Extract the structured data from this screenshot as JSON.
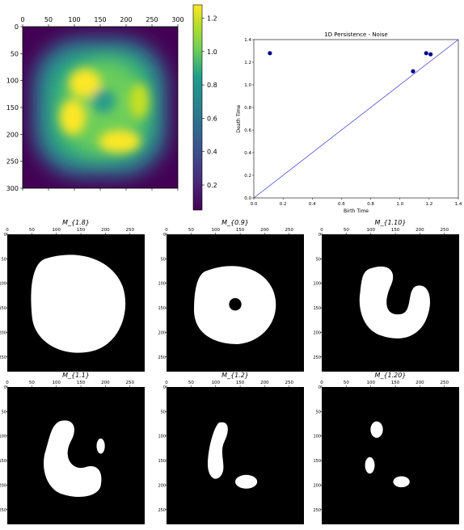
{
  "chart_data": [
    {
      "type": "heatmap",
      "title": "",
      "xlabel": "",
      "ylabel": "",
      "x_ticks": [
        "0",
        "50",
        "100",
        "150",
        "200",
        "250",
        "300"
      ],
      "y_ticks": [
        "0",
        "50",
        "100",
        "150",
        "200",
        "250",
        "300"
      ],
      "xlim": [
        0,
        300
      ],
      "ylim": [
        300,
        0
      ],
      "colormap": "viridis",
      "colorbar": {
        "ticks": [
          "0.2",
          "0.4",
          "0.6",
          "0.8",
          "1.0",
          "1.2"
        ],
        "range": [
          0.05,
          1.28
        ]
      },
      "grid": false
    },
    {
      "type": "scatter",
      "title": "1D Persistence - Noise",
      "xlabel": "Birth Time",
      "ylabel": "Death Time",
      "x_ticks": [
        "0.0",
        "0.2",
        "0.4",
        "0.6",
        "0.8",
        "1.0",
        "1.2",
        "1.4"
      ],
      "y_ticks": [
        "0.0",
        "0.2",
        "0.4",
        "0.6",
        "0.8",
        "1.0",
        "1.2",
        "1.4"
      ],
      "xlim": [
        0,
        1.4
      ],
      "ylim": [
        0,
        1.4
      ],
      "points": [
        {
          "x": 0.11,
          "y": 1.28
        },
        {
          "x": 1.09,
          "y": 1.12
        },
        {
          "x": 1.18,
          "y": 1.28
        },
        {
          "x": 1.21,
          "y": 1.27
        }
      ],
      "diagonal": true,
      "point_color": "#00008b",
      "line_color": "#3333cc",
      "grid": false
    },
    {
      "type": "heatmap",
      "title": "M_{1.8}",
      "x_ticks": [
        "0",
        "50",
        "100",
        "150",
        "200",
        "250"
      ],
      "y_ticks": [
        "0",
        "50",
        "100",
        "150",
        "200",
        "250"
      ],
      "description_values": "binary mask"
    },
    {
      "type": "heatmap",
      "title": "M_{0.9}",
      "x_ticks": [
        "0",
        "50",
        "100",
        "150",
        "200",
        "250"
      ],
      "y_ticks": [
        "0",
        "50",
        "100",
        "150",
        "200",
        "250"
      ]
    },
    {
      "type": "heatmap",
      "title": "M_{1.10}",
      "x_ticks": [
        "0",
        "50",
        "100",
        "150",
        "200",
        "250"
      ],
      "y_ticks": [
        "0",
        "50",
        "100",
        "150",
        "200",
        "250"
      ]
    },
    {
      "type": "heatmap",
      "title": "M_{1.1}",
      "x_ticks": [
        "0",
        "50",
        "100",
        "150",
        "200",
        "250"
      ],
      "y_ticks": [
        "0",
        "50",
        "100",
        "150",
        "200",
        "250"
      ]
    },
    {
      "type": "heatmap",
      "title": "M_{1.2}",
      "x_ticks": [
        "0",
        "50",
        "100",
        "150",
        "200",
        "250"
      ],
      "y_ticks": [
        "0",
        "50",
        "100",
        "150",
        "200",
        "250"
      ]
    },
    {
      "type": "heatmap",
      "title": "M_{1.20}",
      "x_ticks": [
        "0",
        "50",
        "100",
        "150",
        "200",
        "250"
      ],
      "y_ticks": [
        "0",
        "50",
        "100",
        "150",
        "200",
        "250"
      ]
    }
  ]
}
